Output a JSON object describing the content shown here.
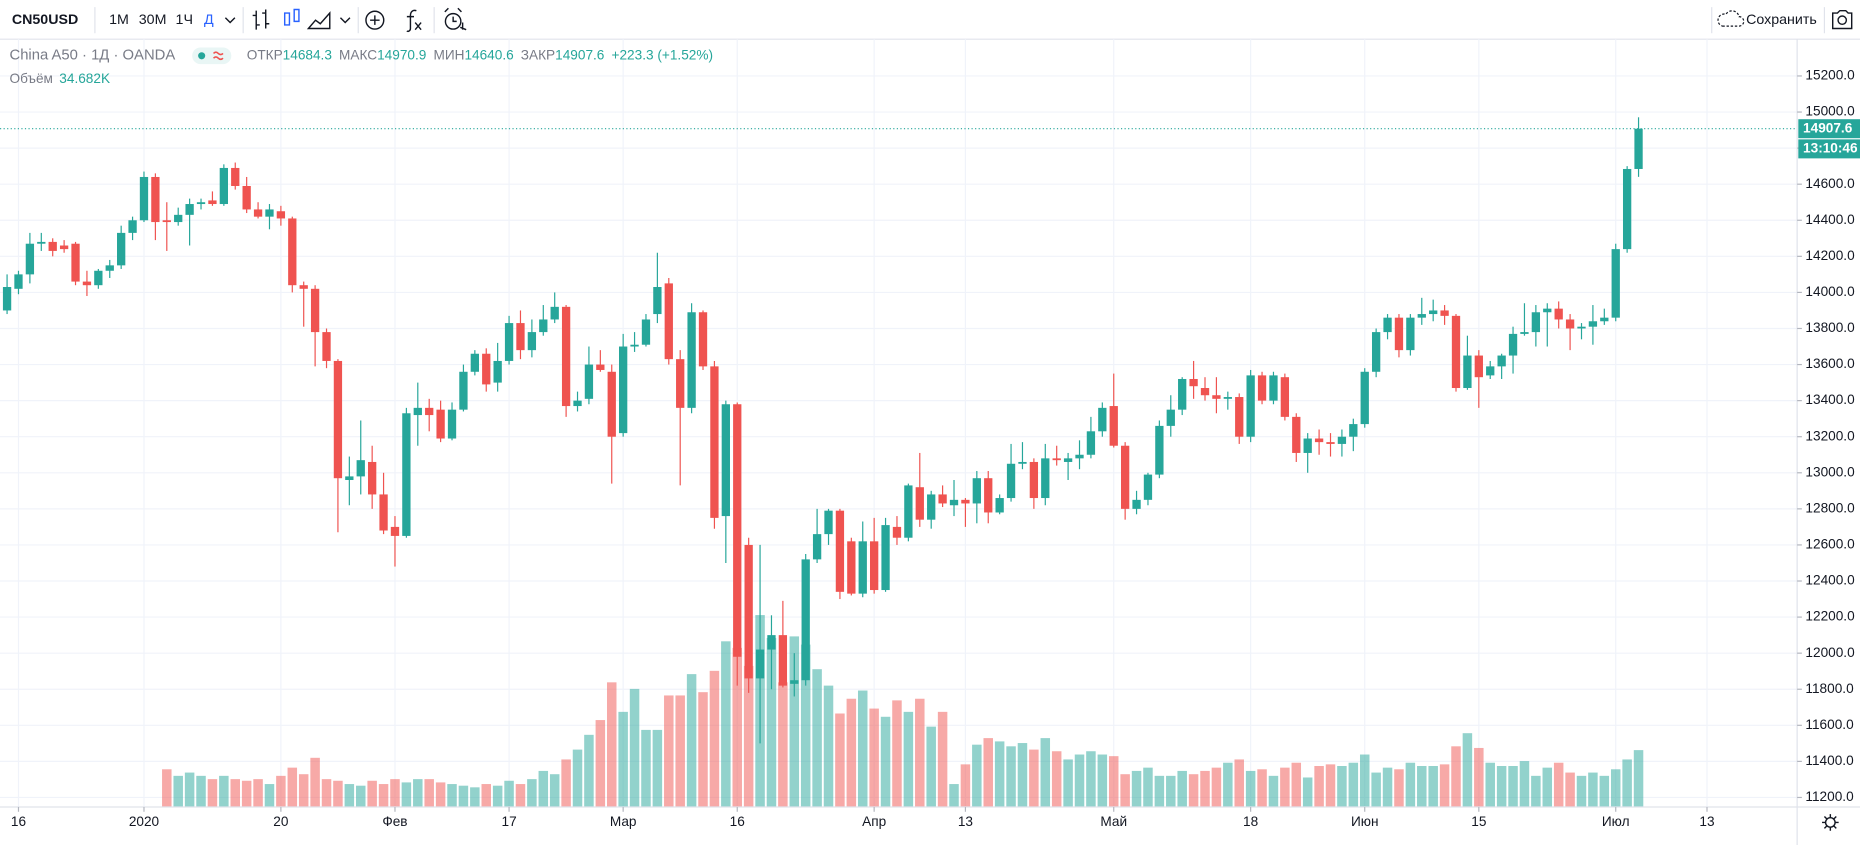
{
  "toolbar": {
    "symbol": "CN50USD",
    "intervals": [
      "1М",
      "30М",
      "1Ч",
      "Д"
    ],
    "save": "Сохранить"
  },
  "chart_data": {
    "type": "candlestick",
    "title": "China A50 · 1Д · OANDA",
    "legend_labels": [
      "ОТКР",
      "МАКС",
      "МИН",
      "ЗАКР"
    ],
    "change": "+223.3 (+1.52%)",
    "countdown": "13:10:46",
    "up_color": "#26a69a",
    "down_color": "#ef5350",
    "open": [
      13900,
      14020,
      14100,
      14270,
      14280,
      14260,
      14270,
      14060,
      14040,
      14120,
      14150,
      14330,
      14400,
      14640,
      14400,
      14390,
      14430,
      14490,
      14510,
      14490,
      14690,
      14590,
      14460,
      14420,
      14450,
      14410,
      14040,
      14020,
      13780,
      13620,
      12960,
      12980,
      13060,
      12880,
      12700,
      12650,
      13320,
      13360,
      13350,
      13190,
      13350,
      13560,
      13660,
      13500,
      13620,
      13830,
      13680,
      13780,
      13850,
      13920,
      13370,
      13410,
      13600,
      13560,
      13220,
      13700,
      13710,
      13880,
      14050,
      13630,
      13360,
      13890,
      13590,
      12760,
      13380,
      12600,
      11860,
      12020,
      12100,
      11830,
      11850,
      12520,
      12660,
      12790,
      12620,
      12330,
      12620,
      12350,
      12700,
      12640,
      12920,
      12740,
      12880,
      12820,
      12850,
      12830,
      12970,
      12780,
      12860,
      13050,
      13060,
      12860,
      13080,
      13060,
      13080,
      13100,
      13230,
      13370,
      13150,
      12800,
      12850,
      12990,
      13260,
      13350,
      13520,
      13470,
      13430,
      13410,
      13420,
      13200,
      13540,
      13400,
      13530,
      13310,
      13110,
      13190,
      13170,
      13160,
      13200,
      13270,
      13560,
      13780,
      13860,
      13680,
      13860,
      13880,
      13900,
      13870,
      13470,
      13650,
      13540,
      13590,
      13650,
      13770,
      13780,
      13890,
      13910,
      13850,
      13800,
      13810,
      13840,
      13860,
      14240,
      14684.3
    ],
    "high": [
      14100,
      14120,
      14330,
      14330,
      14300,
      14290,
      14280,
      14120,
      14130,
      14180,
      14370,
      14420,
      14670,
      14660,
      14500,
      14470,
      14520,
      14520,
      14560,
      14710,
      14720,
      14640,
      14500,
      14490,
      14480,
      14420,
      14060,
      14040,
      13800,
      13630,
      13090,
      13290,
      13150,
      13000,
      12760,
      13360,
      13500,
      13410,
      13400,
      13390,
      13600,
      13680,
      13690,
      13720,
      13870,
      13900,
      13850,
      13930,
      14000,
      13930,
      13450,
      13700,
      13680,
      13600,
      13770,
      13780,
      13880,
      14220,
      14080,
      13680,
      13940,
      13900,
      13620,
      13400,
      13390,
      12640,
      12600,
      12210,
      12290,
      12000,
      12550,
      12800,
      12800,
      12800,
      12640,
      12730,
      12750,
      12750,
      12760,
      12940,
      13110,
      12900,
      12930,
      12960,
      12860,
      13010,
      13010,
      12880,
      13160,
      13170,
      13080,
      13160,
      13150,
      13110,
      13180,
      13310,
      13390,
      13550,
      13170,
      12900,
      13000,
      13290,
      13430,
      13530,
      13620,
      13530,
      13530,
      13450,
      13440,
      13570,
      13560,
      13560,
      13550,
      13330,
      13220,
      13240,
      13220,
      13240,
      13300,
      13580,
      13800,
      13880,
      13880,
      13880,
      13970,
      13960,
      13930,
      13880,
      13760,
      13680,
      13620,
      13660,
      13810,
      13940,
      13930,
      13940,
      13950,
      13880,
      13830,
      13930,
      13910,
      14270,
      14700,
      14970.9
    ],
    "low": [
      13880,
      13990,
      14050,
      14230,
      14200,
      14220,
      14040,
      13980,
      14020,
      14080,
      14130,
      14290,
      14390,
      14290,
      14230,
      14370,
      14260,
      14460,
      14480,
      14480,
      14570,
      14440,
      14410,
      14350,
      14370,
      14000,
      13810,
      13590,
      13580,
      12670,
      12820,
      12880,
      12800,
      12660,
      12480,
      12640,
      13150,
      13230,
      13170,
      13180,
      13340,
      13540,
      13450,
      13450,
      13600,
      13630,
      13640,
      13760,
      13830,
      13310,
      13340,
      13380,
      13560,
      12940,
      13200,
      13670,
      13700,
      13830,
      13600,
      12930,
      13330,
      13570,
      12690,
      12500,
      11820,
      11780,
      11500,
      11800,
      11810,
      11760,
      11820,
      12500,
      12600,
      12300,
      12320,
      12310,
      12330,
      12340,
      12600,
      12620,
      12700,
      12690,
      12810,
      12760,
      12700,
      12720,
      12720,
      12770,
      12840,
      13020,
      12800,
      12820,
      13040,
      12960,
      13020,
      13080,
      13200,
      13140,
      12740,
      12770,
      12820,
      12970,
      13200,
      13320,
      13410,
      13400,
      13330,
      13350,
      13160,
      13170,
      13380,
      13380,
      13290,
      13060,
      13000,
      13100,
      13090,
      13090,
      13120,
      13250,
      13530,
      13740,
      13640,
      13650,
      13820,
      13840,
      13820,
      13450,
      13460,
      13360,
      13520,
      13520,
      13550,
      13760,
      13700,
      13700,
      13800,
      13680,
      13740,
      13710,
      13820,
      13840,
      14220,
      14640.6
    ],
    "close": [
      14030,
      14100,
      14270,
      14280,
      14230,
      14240,
      14060,
      14040,
      14120,
      14150,
      14330,
      14400,
      14640,
      14390,
      14390,
      14430,
      14490,
      14500,
      14490,
      14690,
      14590,
      14460,
      14420,
      14460,
      14410,
      14040,
      14020,
      13780,
      13620,
      12970,
      12980,
      13070,
      12880,
      12680,
      12650,
      13330,
      13360,
      13320,
      13190,
      13350,
      13560,
      13660,
      13490,
      13620,
      13830,
      13680,
      13780,
      13850,
      13920,
      13370,
      13400,
      13600,
      13570,
      13200,
      13700,
      13710,
      13850,
      14030,
      13630,
      13360,
      13890,
      13590,
      12750,
      13380,
      11980,
      11860,
      12020,
      12100,
      11820,
      11850,
      12520,
      12660,
      12790,
      12340,
      12330,
      12620,
      12350,
      12710,
      12640,
      12930,
      12740,
      12880,
      12830,
      12850,
      12830,
      12970,
      12780,
      12860,
      13050,
      13060,
      12860,
      13080,
      13070,
      13080,
      13100,
      13230,
      13360,
      13150,
      12800,
      12850,
      12990,
      13260,
      13350,
      13520,
      13480,
      13430,
      13410,
      13420,
      13200,
      13540,
      13400,
      13540,
      13310,
      13110,
      13190,
      13170,
      13160,
      13200,
      13270,
      13560,
      13780,
      13860,
      13680,
      13860,
      13880,
      13900,
      13870,
      13470,
      13650,
      13530,
      13590,
      13650,
      13770,
      13780,
      13890,
      13910,
      13850,
      13800,
      13810,
      13840,
      13860,
      14240,
      14684.3,
      14907.6
    ],
    "volume": {
      "name": "Объём",
      "values": [
        null,
        null,
        null,
        null,
        null,
        null,
        null,
        null,
        null,
        null,
        null,
        null,
        null,
        null,
        23,
        19,
        21,
        19,
        17,
        19,
        17,
        16,
        17,
        14,
        19,
        24,
        20,
        30,
        17,
        16,
        14,
        13,
        16,
        14,
        17,
        15,
        17,
        17,
        15,
        14,
        13,
        12,
        14,
        13,
        16,
        14,
        17,
        22,
        20,
        29,
        35,
        44,
        53,
        76,
        58,
        72,
        47,
        47,
        68,
        68,
        81,
        70,
        83,
        101,
        97,
        86,
        117,
        103,
        76,
        104,
        99,
        84,
        74,
        57,
        66,
        71,
        60,
        55,
        65,
        58,
        66,
        49,
        58,
        14,
        26,
        38,
        42,
        40,
        37,
        39,
        35,
        42,
        34,
        29,
        32,
        34,
        32,
        31,
        20,
        22,
        24,
        19,
        19,
        22,
        20,
        22,
        24,
        27,
        29,
        22,
        23,
        19,
        24,
        27,
        18,
        25,
        26,
        25,
        27,
        32,
        21,
        24,
        23,
        27,
        25,
        25,
        26,
        37,
        45,
        36,
        27,
        25,
        25,
        28,
        19,
        24,
        27,
        21,
        19,
        21,
        19,
        23,
        29,
        34.682
      ],
      "value_labels": [
        null,
        null,
        null,
        null,
        null,
        null,
        null,
        null,
        null,
        null,
        null,
        null,
        null,
        null,
        null,
        null,
        null,
        null,
        null,
        null,
        null,
        null,
        null,
        null,
        null,
        null,
        null,
        null,
        null,
        null,
        null,
        null,
        null,
        null,
        null,
        null,
        null,
        null,
        null,
        null,
        null,
        null,
        null,
        null,
        null,
        null,
        null,
        null,
        null,
        null,
        null,
        null,
        null,
        null,
        null,
        null,
        null,
        null,
        null,
        null,
        null,
        null,
        null,
        null,
        null,
        null,
        null,
        null,
        null,
        null,
        null,
        null,
        null,
        null,
        null,
        null,
        null,
        null,
        null,
        null,
        null,
        null,
        null,
        null,
        null,
        null,
        null,
        null,
        null,
        null,
        null,
        null,
        null,
        null,
        null,
        null,
        null,
        null,
        null,
        null,
        null,
        null,
        null,
        null,
        null,
        null,
        null,
        null,
        null,
        null,
        null,
        null,
        null,
        null,
        null,
        null,
        null,
        null,
        null,
        null,
        null,
        null,
        null,
        null,
        null,
        null,
        null,
        null,
        null,
        null,
        null,
        null,
        null,
        null,
        null,
        null,
        null,
        null,
        null,
        null,
        null,
        null,
        null,
        "34.682K"
      ]
    },
    "ylim": [
      11147,
      15404
    ],
    "yticks": [
      {
        "value": 11200,
        "label": "11200.0"
      },
      {
        "value": 11400,
        "label": "11400.0"
      },
      {
        "value": 11600,
        "label": "11600.0"
      },
      {
        "value": 11800,
        "label": "11800.0"
      },
      {
        "value": 12000,
        "label": "12000.0"
      },
      {
        "value": 12200,
        "label": "12200.0"
      },
      {
        "value": 12400,
        "label": "12400.0"
      },
      {
        "value": 12600,
        "label": "12600.0"
      },
      {
        "value": 12800,
        "label": "12800.0"
      },
      {
        "value": 13000,
        "label": "13000.0"
      },
      {
        "value": 13200,
        "label": "13200.0"
      },
      {
        "value": 13400,
        "label": "13400.0"
      },
      {
        "value": 13600,
        "label": "13600.0"
      },
      {
        "value": 13800,
        "label": "13800.0"
      },
      {
        "value": 14000,
        "label": "14000.0"
      },
      {
        "value": 14200,
        "label": "14200.0"
      },
      {
        "value": 14400,
        "label": "14400.0"
      },
      {
        "value": 14600,
        "label": "14600.0"
      },
      {
        "value": 14800,
        "label": "14800.0"
      },
      {
        "value": 15000,
        "label": "15000.0"
      },
      {
        "value": 15200,
        "label": "15200.0"
      }
    ],
    "xlim": [
      -0.62,
      156.9
    ],
    "xticks": [
      {
        "value": 1,
        "label": "16"
      },
      {
        "value": 12,
        "label": "2020"
      },
      {
        "value": 24,
        "label": "20"
      },
      {
        "value": 34,
        "label": "Фев"
      },
      {
        "value": 44,
        "label": "17"
      },
      {
        "value": 54,
        "label": "Мар"
      },
      {
        "value": 64,
        "label": "16"
      },
      {
        "value": 76,
        "label": "Апр"
      },
      {
        "value": 84,
        "label": "13"
      },
      {
        "value": 97,
        "label": "Май"
      },
      {
        "value": 109,
        "label": "18"
      },
      {
        "value": 119,
        "label": "Июн"
      },
      {
        "value": 129,
        "label": "15"
      },
      {
        "value": 141,
        "label": "Июл"
      },
      {
        "value": 149,
        "label": "13"
      }
    ],
    "grid": true
  }
}
